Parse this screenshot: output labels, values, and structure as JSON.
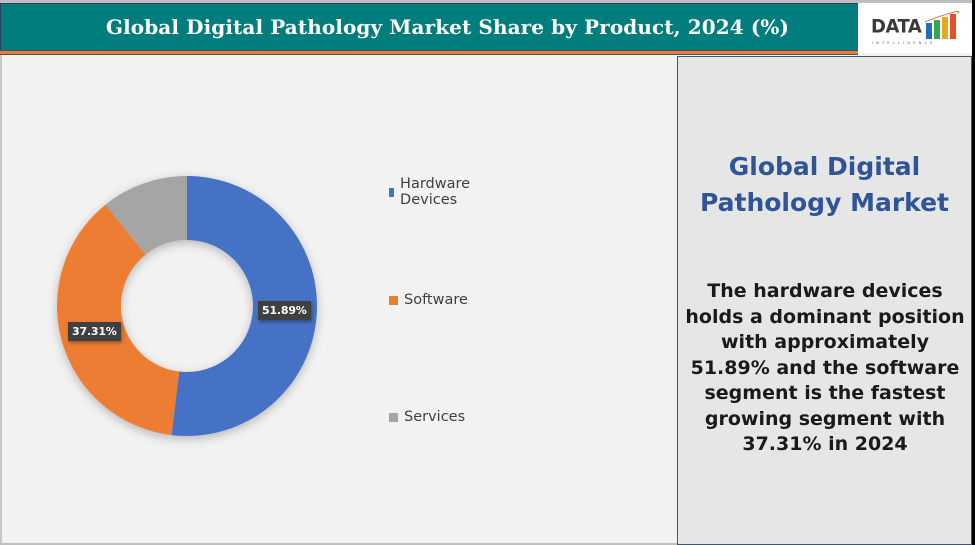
{
  "header": {
    "title": "Global Digital Pathology Market Share by Product, 2024 (%)"
  },
  "logo": {
    "word": "DATA",
    "subtitle": "INTELLIGENCE",
    "bar_colors": [
      "#1f6fbf",
      "#3aa655",
      "#e5a823",
      "#e0522a"
    ]
  },
  "colors": {
    "header_bg": "#027d7d",
    "accent_strip": "#ed7d31",
    "panel_border": "#44546a",
    "side_title": "#2f5597"
  },
  "chart_data": {
    "type": "pie",
    "subtype": "donut",
    "title": "Global Digital Pathology Market Share by Product, 2024 (%)",
    "categories": [
      "Hardware Devices",
      "Software",
      "Services"
    ],
    "values": [
      51.89,
      37.31,
      10.8
    ],
    "colors": [
      "#4472c4",
      "#ed7d31",
      "#a5a5a5"
    ],
    "data_labels": [
      "51.89%",
      "37.31%",
      ""
    ],
    "legend_position": "right",
    "start_angle_deg": 0,
    "direction": "clockwise"
  },
  "legend": {
    "items": [
      {
        "label": "Hardware Devices",
        "color": "#4472c4"
      },
      {
        "label": "Software",
        "color": "#ed7d31"
      },
      {
        "label": "Services",
        "color": "#a5a5a5"
      }
    ]
  },
  "side_panel": {
    "title_lines": [
      "Global Digital",
      "Pathology Market"
    ],
    "body_lines": [
      "The hardware devices",
      "holds a dominant position",
      "with approximately",
      "51.89% and the software",
      "segment is the fastest",
      "growing segment with",
      "37.31% in 2024"
    ]
  }
}
